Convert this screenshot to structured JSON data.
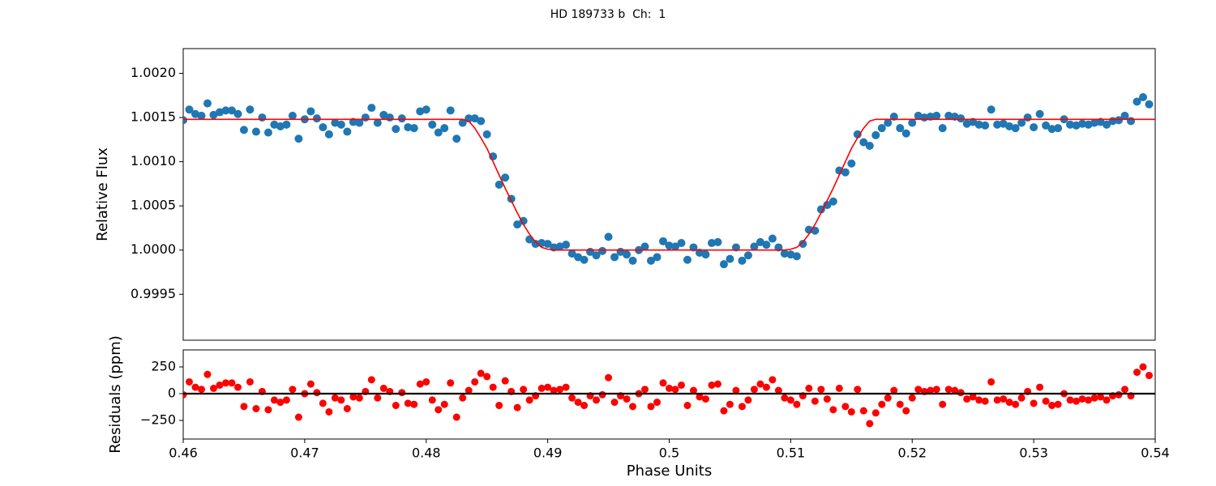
{
  "chart_data": [
    {
      "type": "scatter",
      "title": "HD 189733 b  Ch:  1",
      "ylabel": "Relative Flux",
      "xlim": [
        0.46,
        0.54
      ],
      "ylim": [
        0.99898,
        1.00228
      ],
      "yticks": [
        0.9995,
        {
          "value": 1.0,
          "label": "1.0000"
        },
        1.0005,
        {
          "value": 1.001,
          "label": "1.0010"
        },
        1.0015,
        {
          "value": 1.002,
          "label": "1.0020"
        }
      ],
      "series": [
        {
          "type": "scatter",
          "color": "#1f77b4",
          "x": [
            0.46,
            0.4605,
            0.461,
            0.4615,
            0.462,
            0.4625,
            0.463,
            0.4635,
            0.464,
            0.4645,
            0.465,
            0.4655,
            0.466,
            0.4665,
            0.467,
            0.4675,
            0.468,
            0.4685,
            0.469,
            0.4695,
            0.47,
            0.4705,
            0.471,
            0.4715,
            0.472,
            0.4725,
            0.473,
            0.4735,
            0.474,
            0.4745,
            0.475,
            0.4755,
            0.476,
            0.4765,
            0.477,
            0.4775,
            0.478,
            0.4785,
            0.479,
            0.4795,
            0.48,
            0.4805,
            0.481,
            0.4815,
            0.482,
            0.4825,
            0.483,
            0.4835,
            0.484,
            0.4845,
            0.485,
            0.4855,
            0.486,
            0.4865,
            0.487,
            0.4875,
            0.488,
            0.4885,
            0.489,
            0.4895,
            0.49,
            0.4905,
            0.491,
            0.4915,
            0.492,
            0.4925,
            0.493,
            0.4935,
            0.494,
            0.4945,
            0.495,
            0.4955,
            0.496,
            0.4965,
            0.497,
            0.4975,
            0.498,
            0.4985,
            0.499,
            0.4995,
            0.5,
            0.5005,
            0.501,
            0.5015,
            0.502,
            0.5025,
            0.503,
            0.5035,
            0.504,
            0.5045,
            0.505,
            0.5055,
            0.506,
            0.5065,
            0.507,
            0.5075,
            0.508,
            0.5085,
            0.509,
            0.5095,
            0.51,
            0.5105,
            0.511,
            0.5115,
            0.512,
            0.5125,
            0.513,
            0.5135,
            0.514,
            0.5145,
            0.515,
            0.5155,
            0.516,
            0.5165,
            0.517,
            0.5175,
            0.518,
            0.5185,
            0.519,
            0.5195,
            0.52,
            0.5205,
            0.521,
            0.5215,
            0.522,
            0.5225,
            0.523,
            0.5235,
            0.524,
            0.5245,
            0.525,
            0.5255,
            0.526,
            0.5265,
            0.527,
            0.5275,
            0.528,
            0.5285,
            0.529,
            0.5295,
            0.53,
            0.5305,
            0.531,
            0.5315,
            0.532,
            0.5325,
            0.533,
            0.5335,
            0.534,
            0.5345,
            0.535,
            0.5355,
            0.536,
            0.5365,
            0.537,
            0.5375,
            0.538,
            0.5385,
            0.539,
            0.5395
          ],
          "values": [
            1.00147,
            1.00159,
            1.00154,
            1.00152,
            1.00166,
            1.00153,
            1.00156,
            1.00158,
            1.00158,
            1.00154,
            1.00136,
            1.00159,
            1.00134,
            1.0015,
            1.00133,
            1.00142,
            1.0014,
            1.00142,
            1.00152,
            1.00126,
            1.00148,
            1.00157,
            1.00149,
            1.00139,
            1.00131,
            1.00144,
            1.00142,
            1.00134,
            1.00145,
            1.00144,
            1.0015,
            1.00161,
            1.00144,
            1.00153,
            1.0015,
            1.00137,
            1.00149,
            1.00139,
            1.00138,
            1.00157,
            1.00159,
            1.00142,
            1.00133,
            1.00138,
            1.00158,
            1.00126,
            1.00144,
            1.00149,
            1.00149,
            1.00146,
            1.00131,
            1.00106,
            1.00074,
            1.00082,
            1.00058,
            1.00029,
            1.00033,
            1.00012,
            1.00007,
            1.00008,
            1.00007,
            1.00003,
            1.00004,
            1.00006,
            0.99996,
            0.99992,
            0.99989,
            0.99998,
            0.99994,
            0.99999,
            1.00015,
            0.99992,
            0.99998,
            0.99995,
            0.99988,
            1.0,
            1.00004,
            0.99988,
            0.99992,
            1.0001,
            1.00005,
            1.00004,
            1.00008,
            0.99989,
            1.00003,
            0.99997,
            0.99995,
            1.00008,
            1.00009,
            0.99984,
            0.9999,
            1.00003,
            0.99988,
            0.99994,
            1.00004,
            1.00009,
            1.00006,
            1.00013,
            1.00003,
            0.99996,
            0.99995,
            0.99993,
            1.00007,
            1.00023,
            1.00022,
            1.00046,
            1.00051,
            1.00055,
            1.0009,
            1.00088,
            1.00098,
            1.00131,
            1.00122,
            1.00118,
            1.0013,
            1.00138,
            1.00144,
            1.00151,
            1.00138,
            1.00132,
            1.00144,
            1.00152,
            1.0015,
            1.00151,
            1.00152,
            1.00138,
            1.00152,
            1.00151,
            1.00149,
            1.00143,
            1.00145,
            1.00142,
            1.00141,
            1.00159,
            1.00142,
            1.00143,
            1.0014,
            1.00138,
            1.00144,
            1.0015,
            1.00139,
            1.00154,
            1.00141,
            1.00137,
            1.00138,
            1.00148,
            1.00142,
            1.00141,
            1.00143,
            1.00142,
            1.00144,
            1.00145,
            1.00142,
            1.00146,
            1.00147,
            1.00152,
            1.00146,
            1.00168,
            1.00173,
            1.00165
          ]
        },
        {
          "type": "line",
          "color": "#ff0000",
          "x": [
            0.46,
            0.483,
            0.4835,
            0.484,
            0.4845,
            0.485,
            0.4855,
            0.486,
            0.4865,
            0.487,
            0.4875,
            0.488,
            0.4885,
            0.489,
            0.4895,
            0.49,
            0.4905,
            0.5095,
            0.51,
            0.5105,
            0.511,
            0.5115,
            0.512,
            0.5125,
            0.513,
            0.5135,
            0.514,
            0.5145,
            0.515,
            0.5155,
            0.516,
            0.5165,
            0.517,
            0.54
          ],
          "values": [
            1.00148,
            1.00148,
            1.00146,
            1.00138,
            1.00127,
            1.00115,
            1.001,
            1.00085,
            1.0007,
            1.00056,
            1.00042,
            1.00029,
            1.00018,
            1.00009,
            1.00003,
            1.00001,
            1.0,
            1.0,
            1.00001,
            1.00003,
            1.00009,
            1.00018,
            1.00029,
            1.00042,
            1.00056,
            1.0007,
            1.00085,
            1.001,
            1.00115,
            1.00127,
            1.00138,
            1.00146,
            1.00148,
            1.00148
          ]
        }
      ]
    },
    {
      "type": "scatter",
      "ylabel": "Residuals (ppm)",
      "xlabel": "Phase Units",
      "xlim": [
        0.46,
        0.54
      ],
      "ylim": [
        -424,
        409
      ],
      "xticks": [
        0.46,
        0.47,
        0.48,
        0.49,
        0.5,
        0.51,
        0.52,
        0.53,
        0.54
      ],
      "yticks": [
        {
          "value": -250,
          "label": "−250"
        },
        0,
        250
      ],
      "series": [
        {
          "type": "scatter",
          "color": "#ff0000",
          "x": [
            0.46,
            0.4605,
            0.461,
            0.4615,
            0.462,
            0.4625,
            0.463,
            0.4635,
            0.464,
            0.4645,
            0.465,
            0.4655,
            0.466,
            0.4665,
            0.467,
            0.4675,
            0.468,
            0.4685,
            0.469,
            0.4695,
            0.47,
            0.4705,
            0.471,
            0.4715,
            0.472,
            0.4725,
            0.473,
            0.4735,
            0.474,
            0.4745,
            0.475,
            0.4755,
            0.476,
            0.4765,
            0.477,
            0.4775,
            0.478,
            0.4785,
            0.479,
            0.4795,
            0.48,
            0.4805,
            0.481,
            0.4815,
            0.482,
            0.4825,
            0.483,
            0.4835,
            0.484,
            0.4845,
            0.485,
            0.4855,
            0.486,
            0.4865,
            0.487,
            0.4875,
            0.488,
            0.4885,
            0.489,
            0.4895,
            0.49,
            0.4905,
            0.491,
            0.4915,
            0.492,
            0.4925,
            0.493,
            0.4935,
            0.494,
            0.4945,
            0.495,
            0.4955,
            0.496,
            0.4965,
            0.497,
            0.4975,
            0.498,
            0.4985,
            0.499,
            0.4995,
            0.5,
            0.5005,
            0.501,
            0.5015,
            0.502,
            0.5025,
            0.503,
            0.5035,
            0.504,
            0.5045,
            0.505,
            0.5055,
            0.506,
            0.5065,
            0.507,
            0.5075,
            0.508,
            0.5085,
            0.509,
            0.5095,
            0.51,
            0.5105,
            0.511,
            0.5115,
            0.512,
            0.5125,
            0.513,
            0.5135,
            0.514,
            0.5145,
            0.515,
            0.5155,
            0.516,
            0.5165,
            0.517,
            0.5175,
            0.518,
            0.5185,
            0.519,
            0.5195,
            0.52,
            0.5205,
            0.521,
            0.5215,
            0.522,
            0.5225,
            0.523,
            0.5235,
            0.524,
            0.5245,
            0.525,
            0.5255,
            0.526,
            0.5265,
            0.527,
            0.5275,
            0.528,
            0.5285,
            0.529,
            0.5295,
            0.53,
            0.5305,
            0.531,
            0.5315,
            0.532,
            0.5325,
            0.533,
            0.5335,
            0.534,
            0.5345,
            0.535,
            0.5355,
            0.536,
            0.5365,
            0.537,
            0.5375,
            0.538,
            0.5385,
            0.539,
            0.5395
          ],
          "values": [
            -10,
            110,
            60,
            40,
            180,
            50,
            80,
            100,
            100,
            60,
            -120,
            110,
            -140,
            20,
            -150,
            -60,
            -80,
            -60,
            40,
            -220,
            0,
            90,
            10,
            -90,
            -170,
            -40,
            -60,
            -140,
            -30,
            -40,
            20,
            130,
            -40,
            50,
            20,
            -110,
            10,
            -90,
            -100,
            90,
            110,
            -60,
            -150,
            -100,
            100,
            -220,
            -40,
            30,
            110,
            190,
            160,
            60,
            -110,
            120,
            20,
            -130,
            40,
            -60,
            -20,
            50,
            60,
            30,
            40,
            60,
            -40,
            -80,
            -110,
            -20,
            -60,
            -10,
            150,
            -80,
            -20,
            -50,
            -120,
            0,
            40,
            -120,
            -80,
            100,
            50,
            40,
            80,
            -110,
            30,
            -30,
            -50,
            80,
            90,
            -160,
            -100,
            30,
            -120,
            -60,
            40,
            90,
            60,
            130,
            30,
            -40,
            -60,
            -100,
            -20,
            50,
            -70,
            40,
            -50,
            -150,
            50,
            -120,
            -170,
            40,
            -160,
            -280,
            -180,
            -100,
            -40,
            30,
            -100,
            -160,
            -40,
            40,
            20,
            30,
            40,
            -100,
            40,
            30,
            10,
            -50,
            -30,
            -60,
            -70,
            110,
            -60,
            -50,
            -80,
            -100,
            -40,
            20,
            -90,
            60,
            -70,
            -110,
            -100,
            0,
            -60,
            -70,
            -50,
            -60,
            -40,
            -30,
            -60,
            -20,
            -10,
            40,
            -20,
            200,
            250,
            170
          ]
        },
        {
          "type": "line",
          "color": "#000000",
          "x": [
            0.46,
            0.54
          ],
          "values": [
            0,
            0
          ]
        }
      ]
    }
  ]
}
